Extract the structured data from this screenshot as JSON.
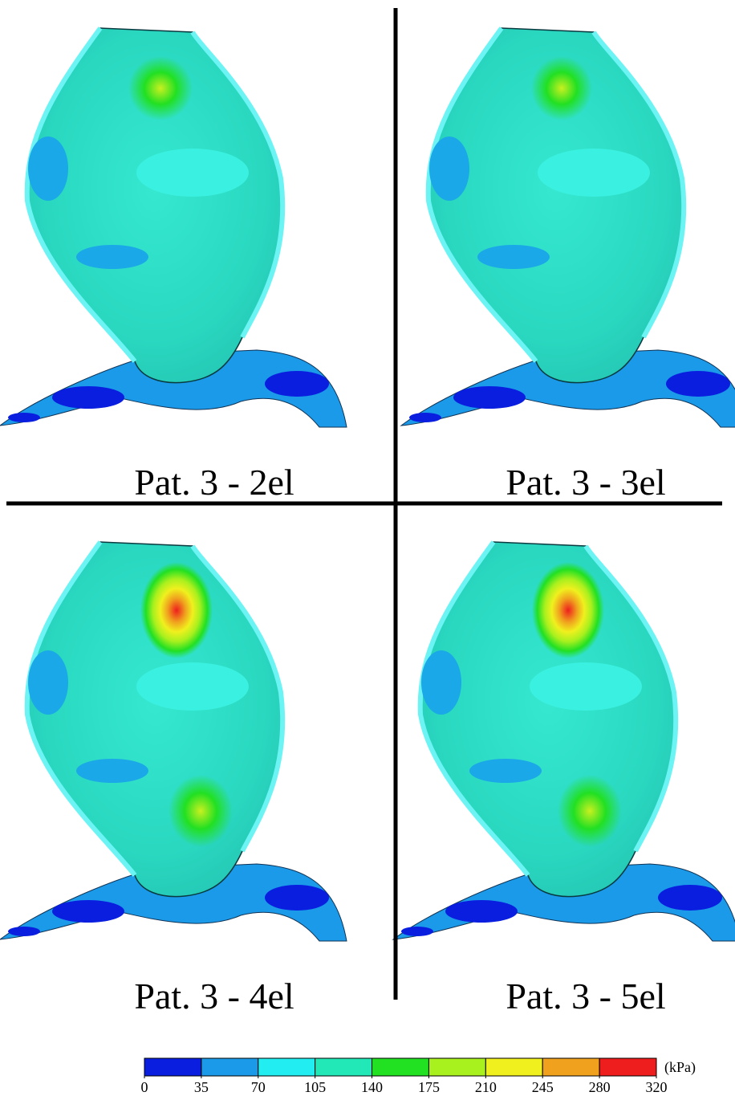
{
  "panels": [
    {
      "label": "Pat. 3 - 2el"
    },
    {
      "label": "Pat. 3 - 3el"
    },
    {
      "label": "Pat. 3 - 4el"
    },
    {
      "label": "Pat. 3 - 5el"
    }
  ],
  "colorbar": {
    "unit": "(kPa)",
    "ticks": [
      0,
      35,
      70,
      105,
      140,
      175,
      210,
      245,
      280,
      320
    ],
    "colors": [
      "#0a1ee0",
      "#1a9ae8",
      "#22eef2",
      "#22e8b8",
      "#22e022",
      "#a8f01e",
      "#f0f01e",
      "#f0a21e",
      "#ee1e1e"
    ]
  }
}
